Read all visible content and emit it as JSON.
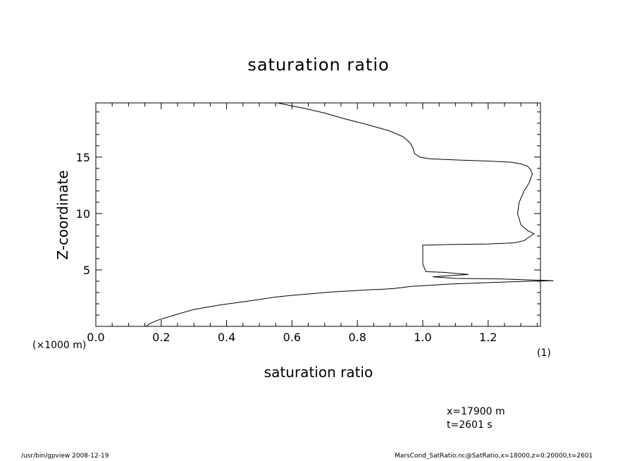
{
  "chart_data": {
    "type": "line",
    "title": "saturation ratio",
    "xlabel": "saturation ratio",
    "ylabel": "Z-coordinate",
    "x_unit": "(1)",
    "y_unit": "(×1000 m)",
    "xlim": [
      0.0,
      1.36
    ],
    "ylim": [
      0,
      19.8
    ],
    "xticks": [
      0.0,
      0.2,
      0.4,
      0.6,
      0.8,
      1.0,
      1.2
    ],
    "xtick_labels": [
      "0.0",
      "0.2",
      "0.4",
      "0.6",
      "0.8",
      "1.0",
      "1.2"
    ],
    "yticks": [
      5,
      10,
      15
    ],
    "ytick_labels": [
      "5",
      "10",
      "15"
    ],
    "grid": false,
    "series": [
      {
        "x": [
          0.155,
          0.165,
          0.19,
          0.24,
          0.3,
          0.38,
          0.48,
          0.55,
          0.6,
          0.66,
          0.72,
          0.78,
          0.84,
          0.88,
          0.91,
          0.94,
          0.965,
          1.0,
          1.08,
          1.22,
          1.32,
          1.4,
          1.24,
          1.1,
          1.03,
          1.14,
          1.06,
          1.01,
          1.0,
          1.0,
          1.01,
          1.08,
          1.2,
          1.28,
          1.31,
          1.33,
          1.34,
          1.32,
          1.3,
          1.29,
          1.295,
          1.31,
          1.325,
          1.335,
          1.33,
          1.32,
          1.3,
          1.27,
          1.2,
          1.1,
          1.02,
          0.99,
          0.975,
          0.97,
          0.96,
          0.94,
          0.9,
          0.84,
          0.76,
          0.7,
          0.64,
          0.58,
          0.555
        ],
        "y": [
          0.0,
          0.25,
          0.55,
          1.0,
          1.5,
          1.9,
          2.3,
          2.6,
          2.75,
          2.9,
          3.05,
          3.15,
          3.25,
          3.3,
          3.35,
          3.45,
          3.55,
          3.6,
          3.75,
          3.9,
          4.0,
          4.05,
          4.2,
          4.25,
          4.4,
          4.6,
          4.8,
          4.85,
          5.5,
          7.2,
          7.2,
          7.25,
          7.3,
          7.4,
          7.6,
          8.0,
          8.2,
          8.5,
          9.0,
          10.0,
          11.0,
          12.0,
          12.7,
          13.5,
          13.9,
          14.2,
          14.4,
          14.55,
          14.65,
          14.75,
          14.85,
          15.0,
          15.3,
          15.8,
          16.3,
          16.8,
          17.3,
          17.8,
          18.4,
          18.9,
          19.3,
          19.65,
          19.8
        ]
      }
    ]
  },
  "annotations": {
    "position_x": "x=17900  m",
    "time": "t=2601  s"
  },
  "footer": {
    "left": "/usr/bin/gpview   2008-12-19",
    "right": "MarsCond_SatRatio.nc@SatRatio,x=18000,z=0:20000,t=2601"
  }
}
